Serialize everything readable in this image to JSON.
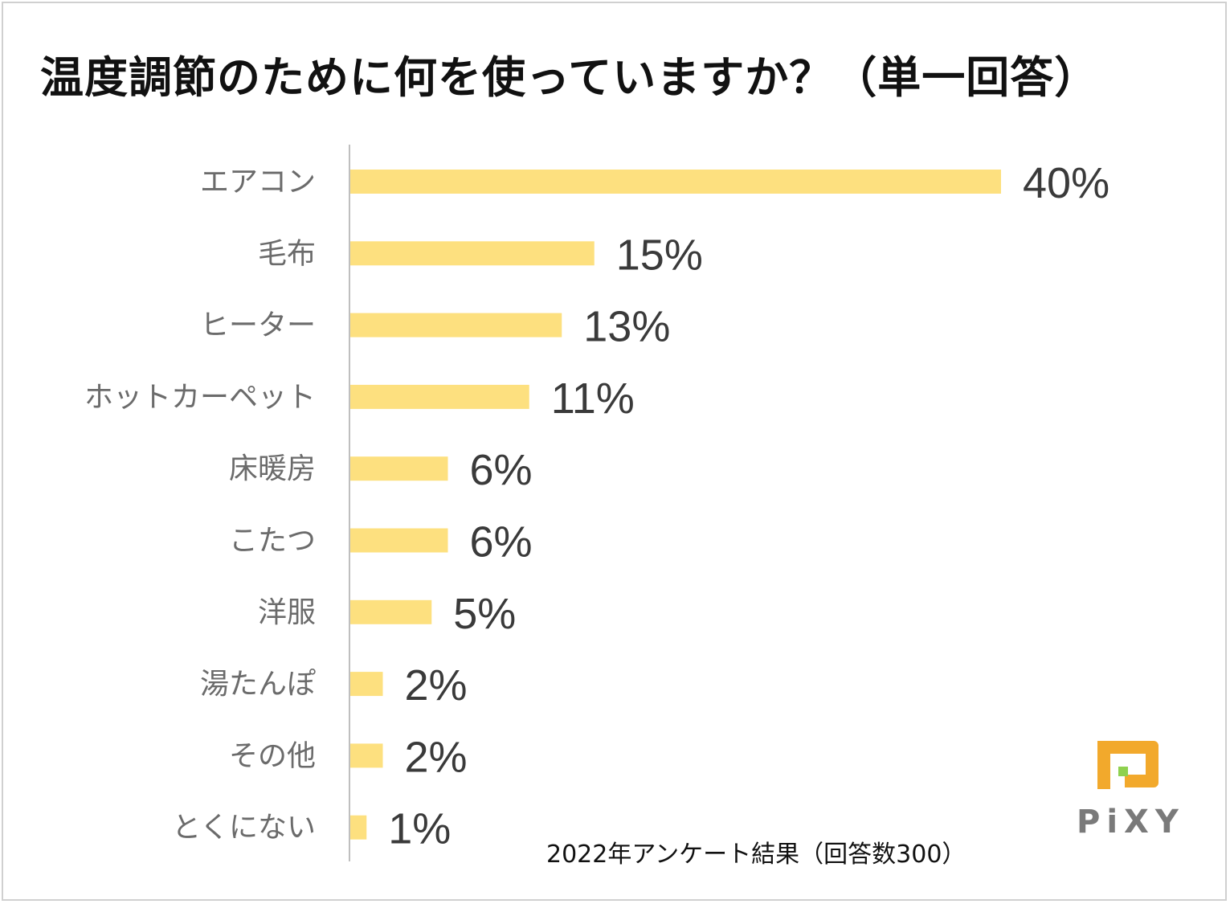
{
  "title": "温度調節のために何を使っていますか？（単一回答）",
  "footnote": "2022年アンケート結果（回答数300）",
  "brand": "PiXY",
  "colors": {
    "bar": "#fde07f",
    "axis": "#bfbfbf",
    "category_text": "#6b6b6b",
    "value_text": "#3a3a3a",
    "logo_orange": "#f2a92c",
    "logo_green": "#8fd14f"
  },
  "chart_data": {
    "type": "bar",
    "orientation": "horizontal",
    "title": "温度調節のために何を使っていますか？（単一回答）",
    "categories": [
      "エアコン",
      "毛布",
      "ヒーター",
      "ホットカーペット",
      "床暖房",
      "こたつ",
      "洋服",
      "湯たんぽ",
      "その他",
      "とくにない"
    ],
    "values": [
      40,
      15,
      13,
      11,
      6,
      6,
      5,
      2,
      2,
      1
    ],
    "value_labels": [
      "40%",
      "15%",
      "13%",
      "11%",
      "6%",
      "6%",
      "5%",
      "2%",
      "2%",
      "1%"
    ],
    "unit": "%",
    "xlim": [
      0,
      40
    ],
    "grid": false
  }
}
